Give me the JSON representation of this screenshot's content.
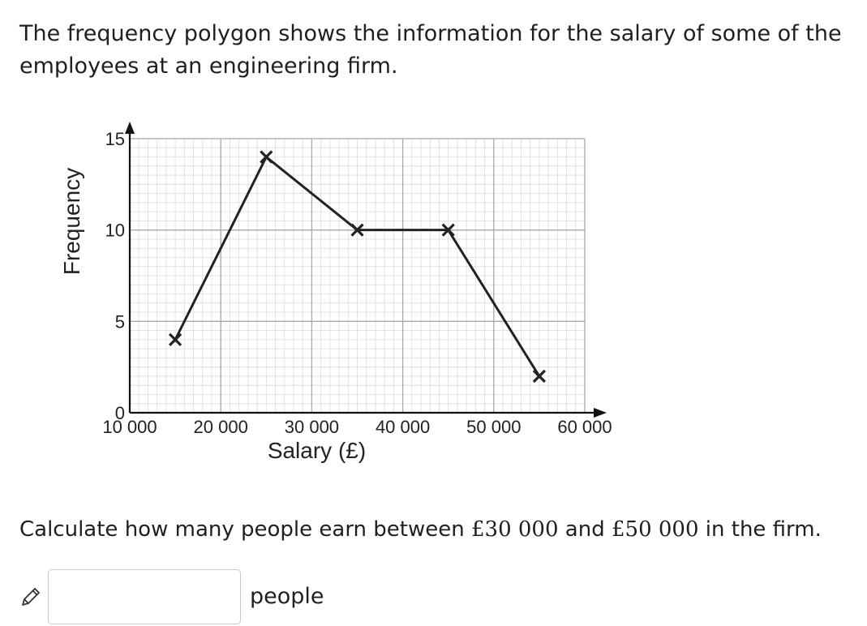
{
  "question": {
    "intro": "The frequency polygon shows the information for the salary of some of the employees at an engineering firm.",
    "prompt_prefix": "Calculate how many people earn between ",
    "value_low": "£30 000",
    "prompt_middle": " and ",
    "value_high": "£50 000",
    "prompt_suffix": " in the firm."
  },
  "answer": {
    "value": "",
    "unit": "people",
    "icon": "pencil-icon"
  },
  "chart_data": {
    "type": "line",
    "title": "",
    "xlabel": "Salary (£)",
    "ylabel": "Frequency",
    "xlim": [
      10000,
      60000
    ],
    "ylim": [
      0,
      15
    ],
    "x_ticks": [
      10000,
      20000,
      30000,
      40000,
      50000,
      60000
    ],
    "x_tick_labels": [
      "10 000",
      "20 000",
      "30 000",
      "40 000",
      "50 000",
      "60 000"
    ],
    "y_ticks": [
      0,
      5,
      10,
      15
    ],
    "y_tick_labels": [
      "0",
      "5",
      "10",
      "15"
    ],
    "grid": true,
    "marker": "cross",
    "series": [
      {
        "x": [
          15000,
          25000,
          35000,
          45000,
          55000
        ],
        "y": [
          4,
          14,
          10,
          10,
          2
        ]
      }
    ],
    "colors": {
      "line": "#222222",
      "major_grid": "#a8a8a8",
      "minor_grid": "#dcdcdc"
    }
  }
}
